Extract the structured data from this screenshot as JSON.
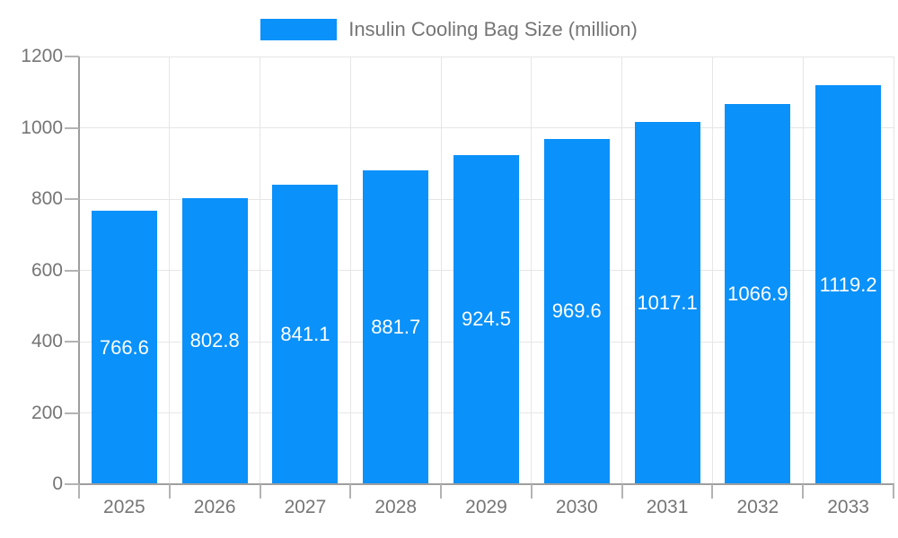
{
  "legend": {
    "position": "top"
  },
  "chart_data": {
    "type": "bar",
    "title": "",
    "categories": [
      "2025",
      "2026",
      "2027",
      "2028",
      "2029",
      "2030",
      "2031",
      "2032",
      "2033"
    ],
    "series": [
      {
        "name": "Insulin Cooling Bag Size (million)",
        "values": [
          766.6,
          802.8,
          841.1,
          881.7,
          924.5,
          969.6,
          1017.1,
          1066.9,
          1119.2
        ]
      }
    ],
    "xlabel": "",
    "ylabel": "",
    "ylim": [
      0,
      1200
    ],
    "yticks": [
      0,
      200,
      400,
      600,
      800,
      1000,
      1200
    ],
    "grid": true,
    "legend_position": "top",
    "bar_color": "#0a91fa",
    "value_label_color": "#ffffff",
    "axis_label_color": "#757575",
    "axis_line_color": "#9e9e9e",
    "tick_color": "#b3b3b3",
    "gridline_color": "#e6e6e6",
    "background_color": "#ffffff"
  }
}
